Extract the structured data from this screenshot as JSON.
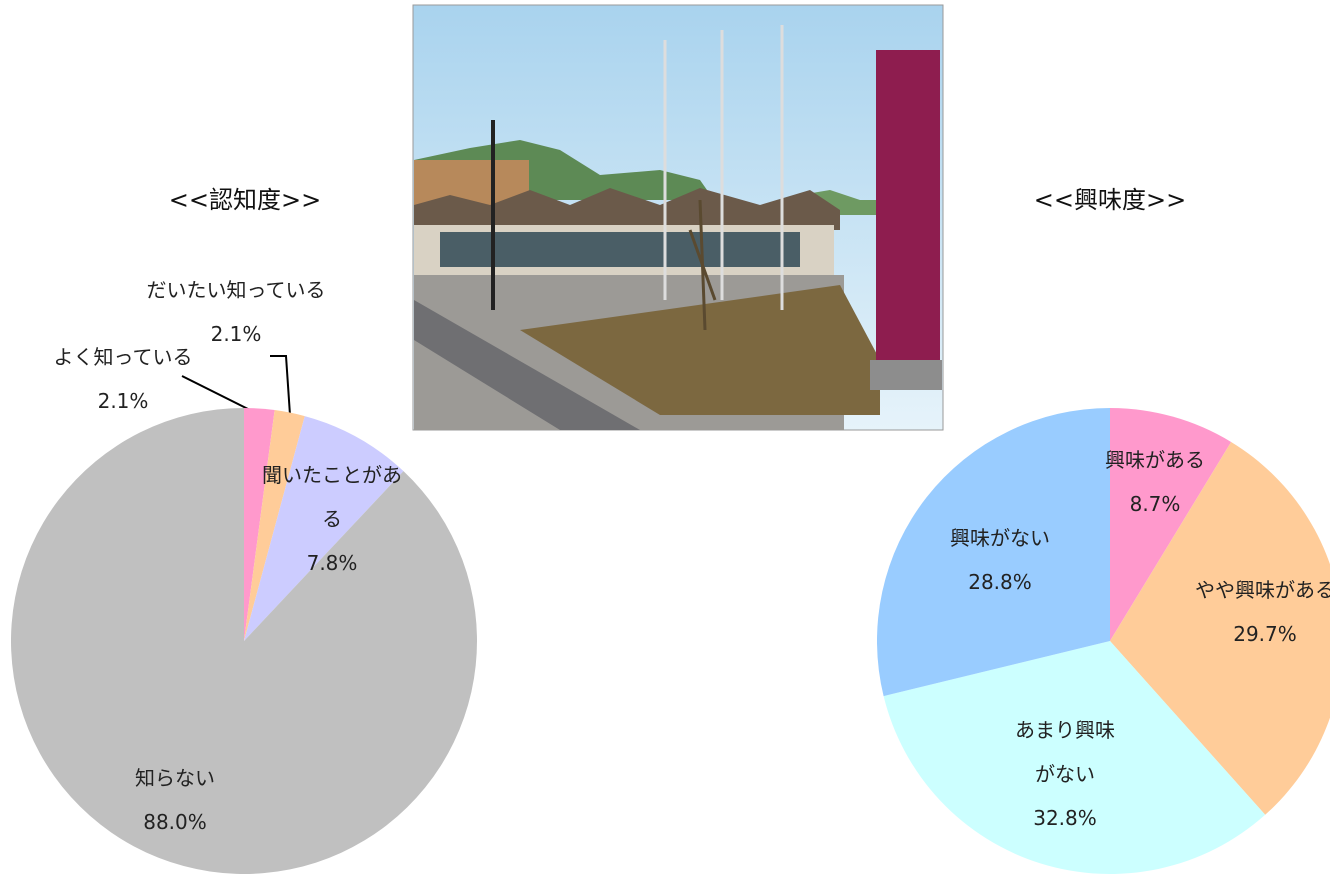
{
  "chart_data": [
    {
      "type": "pie",
      "title": "<<認知度>>",
      "categories": [
        "よく知っている",
        "だいたい知っている",
        "聞いたことがある",
        "知らない"
      ],
      "values": [
        2.1,
        2.1,
        7.8,
        88.0
      ],
      "value_labels": [
        "2.1%",
        "2.1%",
        "7.8%",
        "88.0%"
      ],
      "colors": [
        "#ff99cc",
        "#ffcc99",
        "#ccccff",
        "#c0c0c0"
      ]
    },
    {
      "type": "pie",
      "title": "<<興味度>>",
      "categories": [
        "興味がある",
        "やや興味がある",
        "あまり興味がない",
        "興味がない"
      ],
      "values": [
        8.7,
        29.7,
        32.8,
        28.8
      ],
      "value_labels": [
        "8.7%",
        "29.7%",
        "32.8%",
        "28.8%"
      ],
      "colors": [
        "#ff99cc",
        "#ffcc99",
        "#ccffff",
        "#99ccff"
      ]
    }
  ]
}
